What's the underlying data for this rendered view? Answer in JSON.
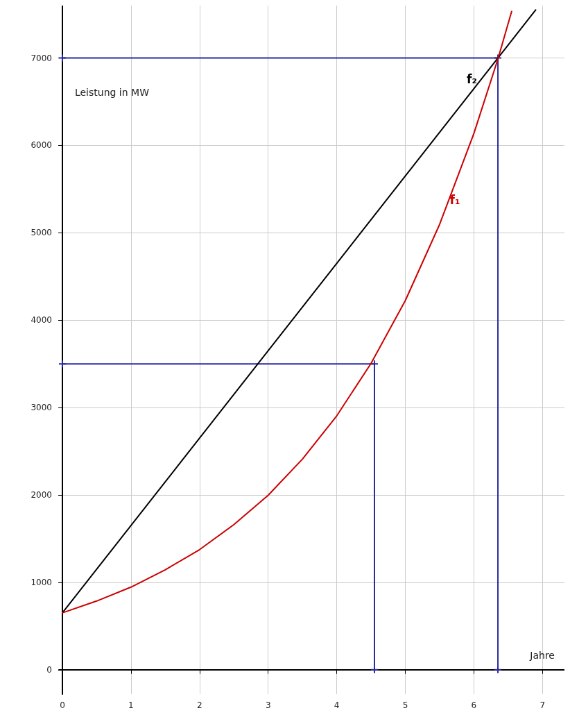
{
  "chart_data": {
    "type": "line",
    "xlabel": "Jahre",
    "ylabel": "Leistung in MW",
    "xlim": [
      -0.05,
      7.32
    ],
    "ylim": [
      -280,
      7600
    ],
    "xticks": [
      0,
      1,
      2,
      3,
      4,
      5,
      6,
      7
    ],
    "yticks": [
      0,
      1000,
      2000,
      3000,
      4000,
      5000,
      6000,
      7000
    ],
    "grid": true,
    "legend": false,
    "marker": "none",
    "line_style": "solid",
    "series": [
      {
        "name": "f₂",
        "color": "#000000",
        "x": [
          0,
          6.35,
          6.9
        ],
        "values": [
          650,
          7000,
          7550
        ]
      },
      {
        "name": "f₁",
        "color": "#cc0000",
        "x": [
          0,
          0.5,
          1,
          1.5,
          2,
          2.5,
          3,
          3.5,
          4,
          4.5,
          5,
          5.5,
          6,
          6.35,
          6.55
        ],
        "values": [
          650,
          786,
          945,
          1143,
          1374,
          1660,
          1996,
          2410,
          2905,
          3505,
          4224,
          5096,
          6137,
          6988,
          7533
        ]
      },
      {
        "color": "#2a2aa0",
        "marker": "cross",
        "x": [
          0,
          4.55,
          4.55
        ],
        "values": [
          3500,
          3500,
          0
        ]
      },
      {
        "color": "#2a2aa0",
        "marker": "cross",
        "x": [
          0,
          6.35,
          6.35
        ],
        "values": [
          7000,
          7000,
          0
        ]
      }
    ]
  }
}
